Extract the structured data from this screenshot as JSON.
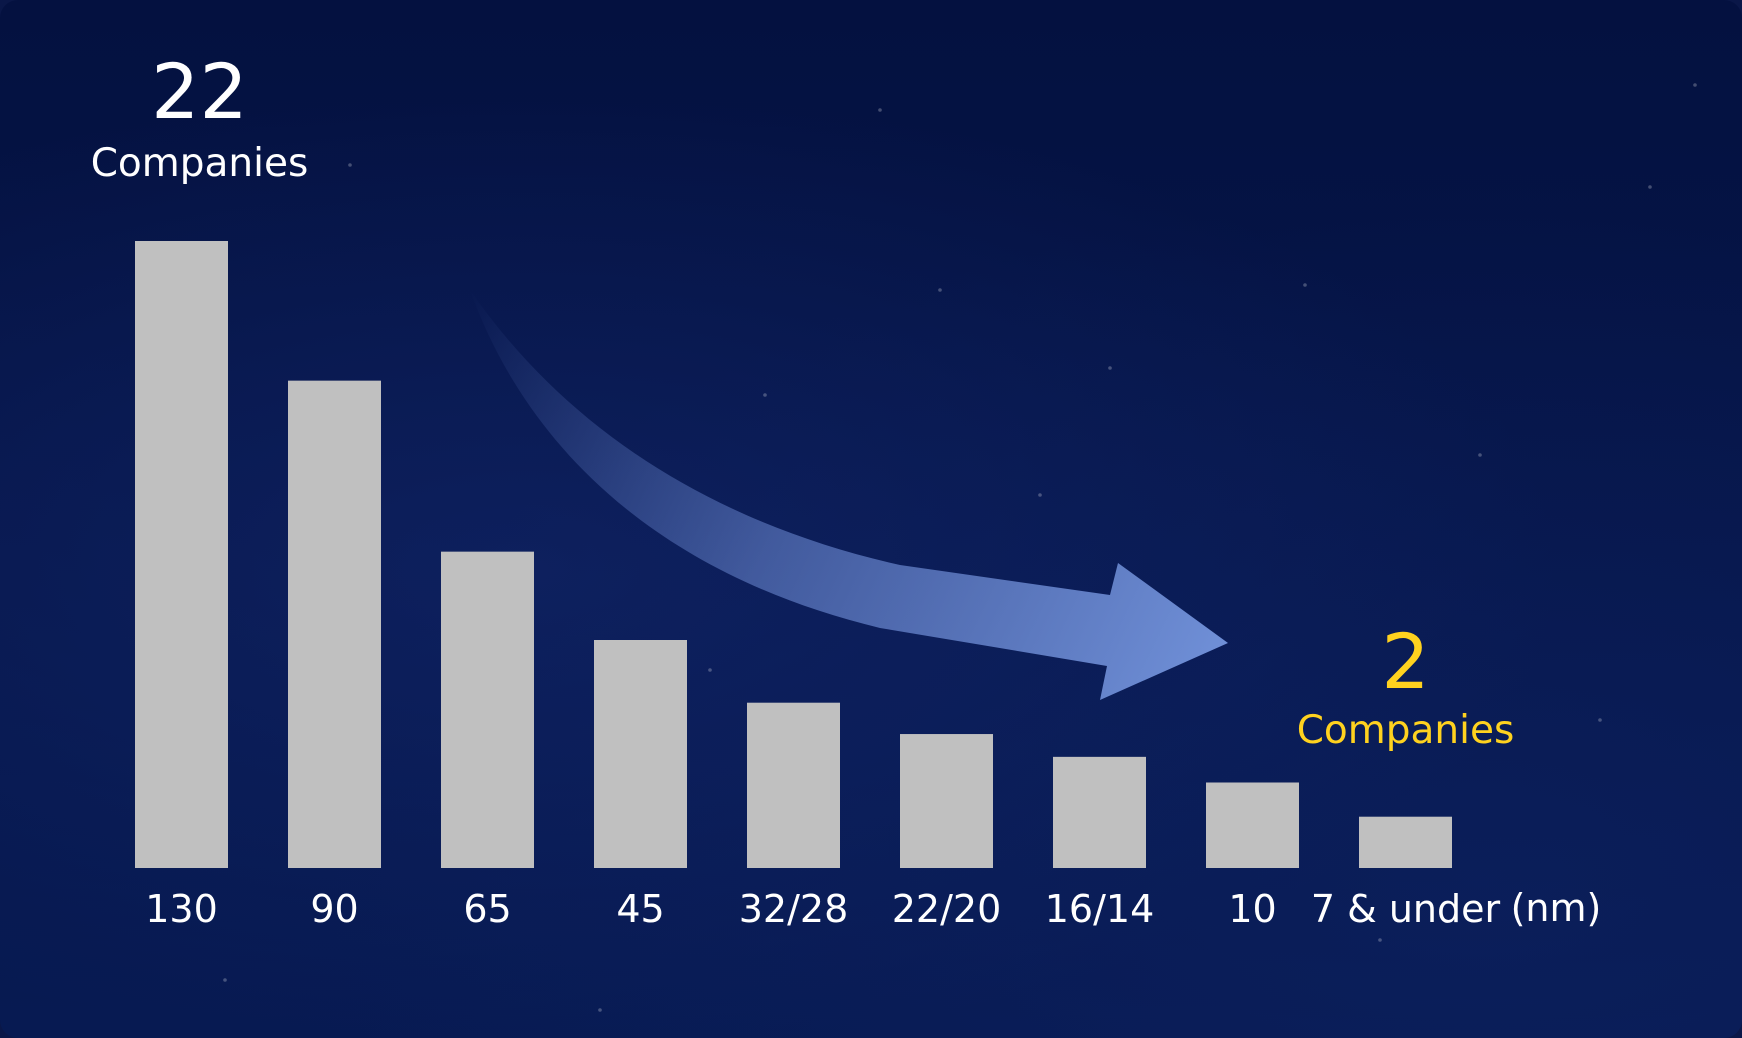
{
  "chart_data": {
    "type": "bar",
    "categories": [
      "130",
      "90",
      "65",
      "45",
      "32/28",
      "22/20",
      "16/14",
      "10",
      "7 & under"
    ],
    "values": [
      22,
      17.1,
      11.1,
      8.0,
      5.8,
      4.7,
      3.9,
      3.0,
      1.8
    ],
    "unit_label": "(nm)",
    "ylim": [
      0,
      22
    ],
    "grid": false,
    "legend": "none",
    "annotations": [
      {
        "number": "22",
        "label": "Companies",
        "category": "130",
        "color": "#ffffff"
      },
      {
        "number": "2",
        "label": "Companies",
        "category": "7 & under",
        "color": "#ffd21f"
      }
    ],
    "colors": {
      "bar": "#c0c0c0",
      "arrow": "#6d8bd4",
      "highlight": "#ffd21f",
      "text": "#ffffff",
      "background": "#061650"
    }
  }
}
